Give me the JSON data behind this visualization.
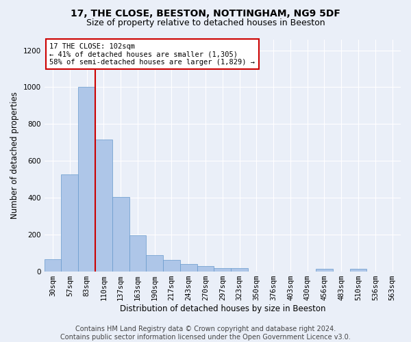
{
  "title": "17, THE CLOSE, BEESTON, NOTTINGHAM, NG9 5DF",
  "subtitle": "Size of property relative to detached houses in Beeston",
  "xlabel": "Distribution of detached houses by size in Beeston",
  "ylabel": "Number of detached properties",
  "footer_line1": "Contains HM Land Registry data © Crown copyright and database right 2024.",
  "footer_line2": "Contains public sector information licensed under the Open Government Licence v3.0.",
  "categories": [
    "30sqm",
    "57sqm",
    "83sqm",
    "110sqm",
    "137sqm",
    "163sqm",
    "190sqm",
    "217sqm",
    "243sqm",
    "270sqm",
    "297sqm",
    "323sqm",
    "350sqm",
    "376sqm",
    "403sqm",
    "430sqm",
    "456sqm",
    "483sqm",
    "510sqm",
    "536sqm",
    "563sqm"
  ],
  "values": [
    65,
    525,
    1000,
    715,
    405,
    197,
    88,
    60,
    40,
    30,
    18,
    18,
    0,
    0,
    0,
    0,
    15,
    0,
    12,
    0,
    0
  ],
  "bar_color": "#aec6e8",
  "bar_edge_color": "#6699cc",
  "vline_color": "#cc0000",
  "annotation_text": "17 THE CLOSE: 102sqm\n← 41% of detached houses are smaller (1,305)\n58% of semi-detached houses are larger (1,829) →",
  "annotation_box_color": "white",
  "annotation_box_edge": "#cc0000",
  "ylim": [
    0,
    1260
  ],
  "yticks": [
    0,
    200,
    400,
    600,
    800,
    1000,
    1200
  ],
  "background_color": "#eaeff8",
  "grid_color": "white",
  "title_fontsize": 10,
  "subtitle_fontsize": 9,
  "label_fontsize": 8.5,
  "tick_fontsize": 7.5,
  "footer_fontsize": 7
}
